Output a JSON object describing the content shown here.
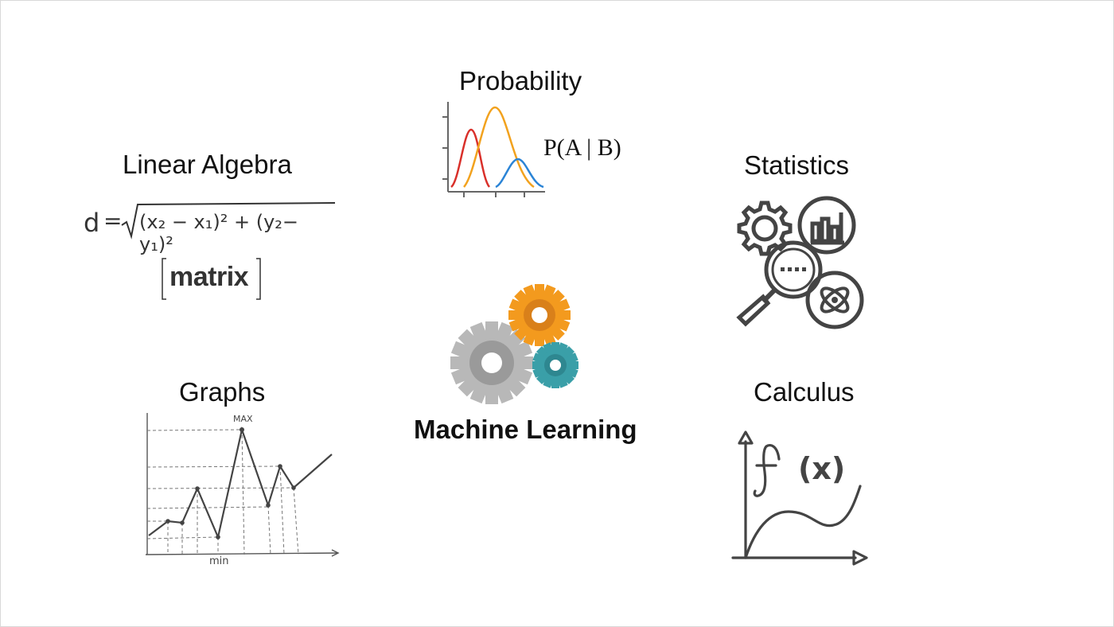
{
  "topics": {
    "probability": {
      "label": "Probability",
      "formula": "P(A | B)"
    },
    "linear_algebra": {
      "label": "Linear Algebra",
      "formula_d": "d",
      "formula_body": "(x₂ − x₁)² + (y₂− y₁)²",
      "matrix": "matrix"
    },
    "statistics": {
      "label": "Statistics"
    },
    "graphs": {
      "label": "Graphs",
      "max_label": "MAX",
      "min_label": "min"
    },
    "calculus": {
      "label": "Calculus",
      "fx": "f",
      "x_paren": "(x)"
    }
  },
  "center": {
    "label": "Machine Learning"
  },
  "colors": {
    "gear_gray": "#b8b8b8",
    "gear_orange": "#f39a1e",
    "gear_teal": "#3a9fa8",
    "curve_red": "#d9302a",
    "curve_orange": "#f2a21e",
    "curve_blue": "#2b84d6",
    "icon_stroke": "#444444"
  }
}
